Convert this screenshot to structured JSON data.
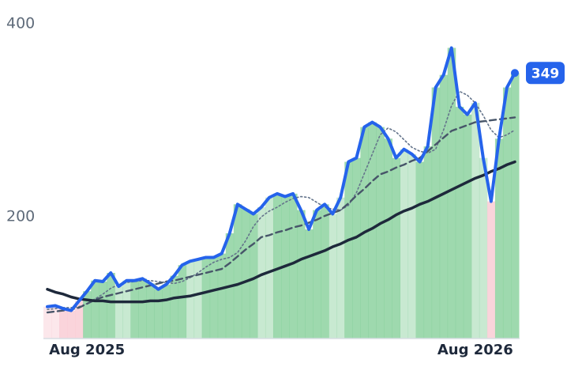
{
  "chart_data": {
    "type": "line",
    "categories": [
      null,
      null,
      null,
      null,
      null,
      "Aug 2025",
      null,
      null,
      null,
      null,
      null,
      null,
      null,
      null,
      null,
      null,
      null,
      null,
      null,
      null,
      null,
      null,
      null,
      null,
      null,
      null,
      null,
      null,
      null,
      null,
      null,
      null,
      null,
      null,
      null,
      null,
      null,
      null,
      null,
      null,
      null,
      null,
      null,
      null,
      null,
      null,
      null,
      null,
      null,
      null,
      null,
      null,
      null,
      null,
      "Aug 2026",
      null,
      null,
      null,
      null,
      null
    ],
    "series": [
      {
        "color": "#2563eb",
        "style": "solid",
        "values": [
          107,
          108,
          105,
          103,
          113,
          123,
          134,
          133,
          142,
          128,
          134,
          134,
          136,
          131,
          125,
          130,
          139,
          150,
          154,
          156,
          158,
          158,
          162,
          183,
          213,
          208,
          203,
          210,
          220,
          224,
          221,
          224,
          207,
          187,
          207,
          213,
          203,
          220,
          257,
          261,
          293,
          298,
          293,
          281,
          261,
          270,
          265,
          257,
          273,
          334,
          347,
          375,
          314,
          306,
          318,
          261,
          216,
          281,
          334,
          349
        ]
      },
      {
        "color": "#64748b",
        "style": "dotted",
        "values": [
          104,
          105,
          106,
          106,
          107,
          110,
          115,
          120,
          126,
          130,
          132,
          133,
          134,
          134,
          133,
          132,
          131,
          133,
          137,
          142,
          148,
          153,
          156,
          158,
          163,
          175,
          190,
          200,
          206,
          210,
          215,
          219,
          221,
          220,
          215,
          210,
          208,
          207,
          212,
          225,
          245,
          265,
          285,
          292,
          288,
          280,
          272,
          268,
          266,
          270,
          290,
          315,
          330,
          326,
          318,
          305,
          290,
          282,
          285,
          290
        ]
      },
      {
        "color": "#475569",
        "style": "dashed",
        "values": [
          101,
          102,
          103,
          104,
          106,
          110,
          114,
          117,
          119,
          121,
          123,
          125,
          127,
          129,
          131,
          133,
          134,
          136,
          138,
          140,
          142,
          144,
          146,
          152,
          159,
          166,
          172,
          179,
          181,
          184,
          186,
          189,
          191,
          194,
          197,
          201,
          204,
          207,
          214,
          222,
          229,
          237,
          244,
          247,
          251,
          254,
          258,
          261,
          268,
          275,
          282,
          289,
          292,
          295,
          298,
          299,
          300,
          301,
          302,
          303
        ]
      },
      {
        "color": "#1e293b",
        "style": "solid",
        "values": [
          125,
          122,
          120,
          117,
          115,
          114,
          113,
          113,
          112,
          112,
          112,
          112,
          112,
          113,
          113,
          114,
          116,
          117,
          118,
          120,
          122,
          124,
          126,
          128,
          130,
          133,
          136,
          140,
          143,
          146,
          149,
          152,
          156,
          159,
          162,
          165,
          169,
          172,
          176,
          179,
          184,
          188,
          193,
          197,
          202,
          206,
          209,
          213,
          216,
          220,
          224,
          228,
          232,
          236,
          240,
          243,
          247,
          250,
          254,
          257
        ]
      }
    ],
    "ylim": [
      74,
      400
    ],
    "yticks": [
      200,
      400
    ],
    "grid": false,
    "up_color": "#86cf9a",
    "down_color": "#f9c9d2"
  }
}
